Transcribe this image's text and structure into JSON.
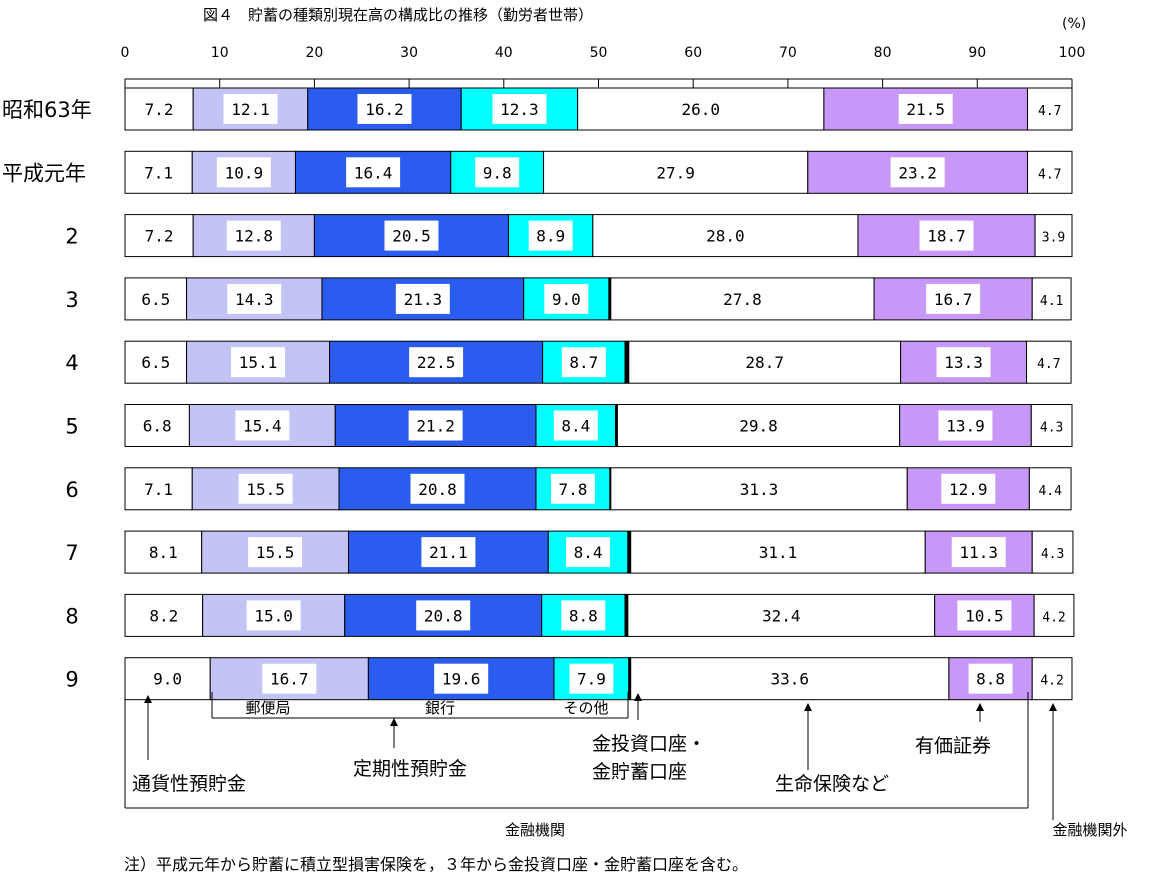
{
  "title": "図４　貯蓄の種類別現在高の構成比の推移（勤労者世帯）",
  "unit_label": "(%)",
  "note": "注）平成元年から貯蓄に積立型損害保険を，３年から金投資口座・金貯蓄口座を含む。",
  "annotations": {
    "currency": "通貨性預貯金",
    "fixed": "定期性預貯金",
    "gold": "金投資口座・\n金貯蓄口座",
    "life": "生命保険など",
    "securities": "有価証券",
    "financial": "金融機関",
    "nonfinancial": "金融機関外",
    "postal": "郵便局",
    "bank": "銀行",
    "other": "その他"
  },
  "colors": {
    "currency": "#ffffff",
    "postal": "#c3c3f5",
    "bank": "#2a5cf0",
    "other": "#00ffff",
    "gold": "#000000",
    "life": "#ffffff",
    "securities": "#c898f8",
    "nonfinancial": "#ffffff"
  },
  "chart_data": {
    "type": "bar",
    "orientation": "horizontal",
    "stacked": true,
    "xlim": [
      0,
      100
    ],
    "xticks": [
      "0",
      "10",
      "20",
      "30",
      "40",
      "50",
      "60",
      "70",
      "80",
      "90",
      "100"
    ],
    "categories": [
      "昭和63年",
      "平成元年",
      "2",
      "3",
      "4",
      "5",
      "6",
      "7",
      "8",
      "9"
    ],
    "series": [
      {
        "key": "currency",
        "name": "通貨性預貯金",
        "values": [
          7.2,
          7.1,
          7.2,
          6.5,
          6.5,
          6.8,
          7.1,
          8.1,
          8.2,
          9.0
        ]
      },
      {
        "key": "postal",
        "name": "郵便局",
        "values": [
          12.1,
          10.9,
          12.8,
          14.3,
          15.1,
          15.4,
          15.5,
          15.5,
          15.0,
          16.7
        ]
      },
      {
        "key": "bank",
        "name": "銀行",
        "values": [
          16.2,
          16.4,
          20.5,
          21.3,
          22.5,
          21.2,
          20.8,
          21.1,
          20.8,
          19.6
        ]
      },
      {
        "key": "other",
        "name": "その他",
        "values": [
          12.3,
          9.8,
          8.9,
          9.0,
          8.7,
          8.4,
          7.8,
          8.4,
          8.8,
          7.9
        ]
      },
      {
        "key": "gold",
        "name": "金投資口座・金貯蓄口座",
        "values": [
          0,
          0,
          0,
          0.2,
          0.4,
          0.2,
          0.1,
          0.3,
          0.3,
          0.2
        ]
      },
      {
        "key": "life",
        "name": "生命保険など",
        "values": [
          26.0,
          27.9,
          28.0,
          27.8,
          28.7,
          29.8,
          31.3,
          31.1,
          32.4,
          33.6
        ]
      },
      {
        "key": "securities",
        "name": "有価証券",
        "values": [
          21.5,
          23.2,
          18.7,
          16.7,
          13.3,
          13.9,
          12.9,
          11.3,
          10.5,
          8.8
        ]
      },
      {
        "key": "nonfinancial",
        "name": "金融機関外",
        "values": [
          4.7,
          4.7,
          3.9,
          4.1,
          4.7,
          4.3,
          4.4,
          4.3,
          4.2,
          4.2
        ]
      }
    ],
    "labels": [
      [
        "7.2",
        "12.1",
        "16.2",
        "12.3",
        "",
        "26.0",
        "21.5",
        "4.7"
      ],
      [
        "7.1",
        "10.9",
        "16.4",
        "9.8",
        "",
        "27.9",
        "23.2",
        "4.7"
      ],
      [
        "7.2",
        "12.8",
        "20.5",
        "8.9",
        "",
        "28.0",
        "18.7",
        "3.9"
      ],
      [
        "6.5",
        "14.3",
        "21.3",
        "9.0",
        "",
        "27.8",
        "16.7",
        "4.1"
      ],
      [
        "6.5",
        "15.1",
        "22.5",
        "8.7",
        "",
        "28.7",
        "13.3",
        "4.7"
      ],
      [
        "6.8",
        "15.4",
        "21.2",
        "8.4",
        "",
        "29.8",
        "13.9",
        "4.3"
      ],
      [
        "7.1",
        "15.5",
        "20.8",
        "7.8",
        "",
        "31.3",
        "12.9",
        "4.4"
      ],
      [
        "8.1",
        "15.5",
        "21.1",
        "8.4",
        "",
        "31.1",
        "11.3",
        "4.3"
      ],
      [
        "8.2",
        "15.0",
        "20.8",
        "8.8",
        "",
        "32.4",
        "10.5",
        "4.2"
      ],
      [
        "9.0",
        "16.7",
        "19.6",
        "7.9",
        "",
        "33.6",
        "8.8",
        "4.2"
      ]
    ]
  }
}
